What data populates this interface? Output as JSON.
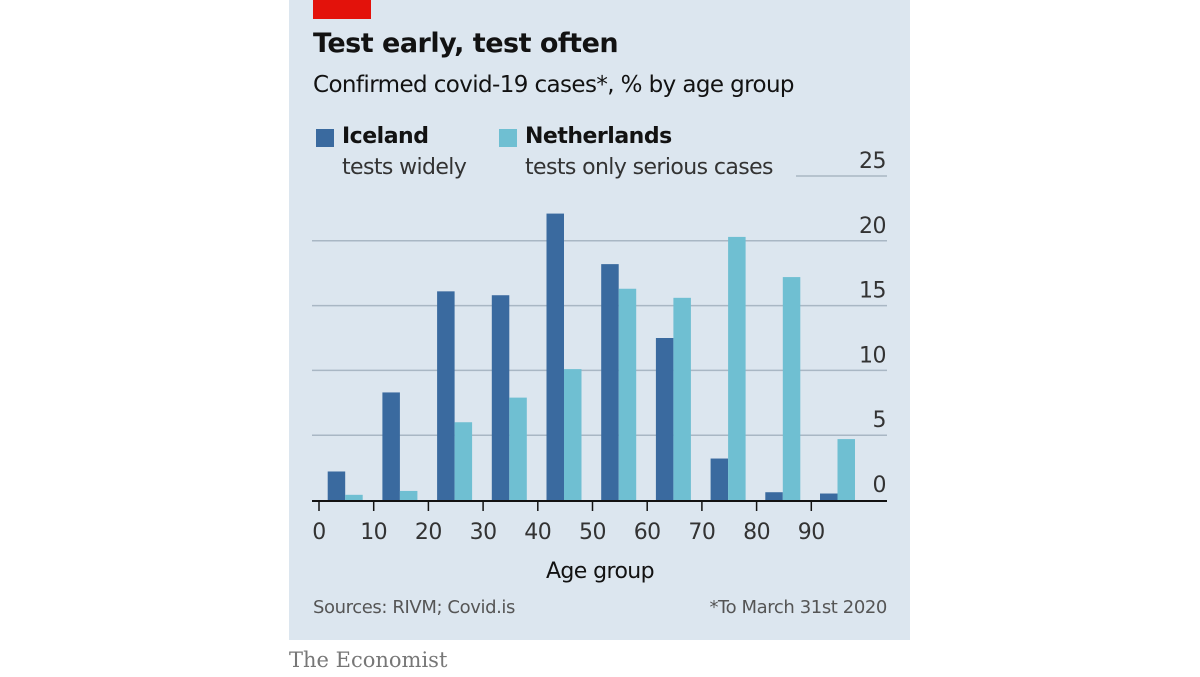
{
  "title": "Test early, test often",
  "subtitle": "Confirmed covid-19 cases*, % by age group",
  "legend": [
    {
      "name": "Iceland",
      "desc": "tests widely",
      "color": "#3a6a9f"
    },
    {
      "name": "Netherlands",
      "desc": "tests only serious cases",
      "color": "#6fbfd2"
    }
  ],
  "source": "Sources: RIVM; Covid.is",
  "footnote": "*To March 31st 2020",
  "brand": "The Economist",
  "colors": {
    "accent": "#e3120b",
    "panel": "#dce6ef",
    "grid": "#a9b7c4"
  },
  "chart_data": {
    "type": "bar",
    "title": "Test early, test often",
    "subtitle": "Confirmed covid-19 cases*, % by age group",
    "xlabel": "Age group",
    "ylabel": "%",
    "categories": [
      "0-9",
      "10-19",
      "20-29",
      "30-39",
      "40-49",
      "50-59",
      "60-69",
      "70-79",
      "80-89",
      "90+"
    ],
    "x_ticks": [
      "0",
      "10",
      "20",
      "30",
      "40",
      "50",
      "60",
      "70",
      "80",
      "90"
    ],
    "y_ticks": [
      "0",
      "5",
      "10",
      "15",
      "20",
      "25"
    ],
    "ylim": [
      0,
      25
    ],
    "grid": true,
    "y_axis_side": "right",
    "legend_position": "top-left",
    "series": [
      {
        "name": "Iceland",
        "values": [
          2.2,
          8.3,
          16.1,
          15.8,
          22.1,
          18.2,
          12.5,
          3.2,
          0.6,
          0.5
        ]
      },
      {
        "name": "Netherlands",
        "values": [
          0.4,
          0.7,
          6.0,
          7.9,
          10.1,
          16.3,
          15.6,
          20.3,
          17.2,
          4.7
        ]
      }
    ]
  }
}
